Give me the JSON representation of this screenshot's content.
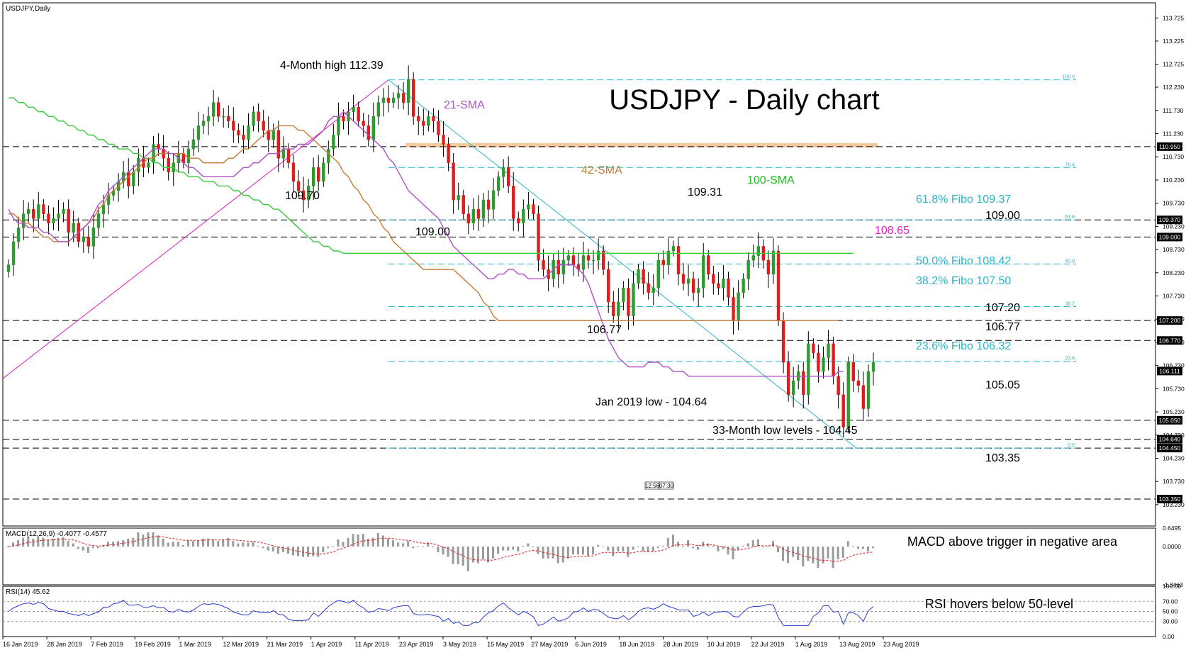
{
  "header": {
    "symbol_label": "USDJPY,Daily"
  },
  "title": "USDJPY - Daily chart",
  "chart_data": [
    {
      "type": "candlestick",
      "name": "main-price-panel",
      "ylim": [
        102.77,
        114.05
      ],
      "y_ticks": [
        113.725,
        113.225,
        112.725,
        112.23,
        111.73,
        111.23,
        110.73,
        110.23,
        109.73,
        109.23,
        108.73,
        108.23,
        107.73,
        107.23,
        106.73,
        106.23,
        105.73,
        105.23,
        104.73,
        104.23,
        103.73,
        103.23,
        102.73
      ],
      "price_badges": [
        {
          "value": "110.950",
          "dark": true
        },
        {
          "value": "109.370",
          "dark": true
        },
        {
          "value": "109.000",
          "dark": true
        },
        {
          "value": "107.200",
          "dark": true
        },
        {
          "value": "106.770",
          "dark": true
        },
        {
          "value": "106.111",
          "dark": true
        },
        {
          "value": "105.050",
          "dark": true
        },
        {
          "value": "104.640",
          "dark": true
        },
        {
          "value": "104.450",
          "dark": true
        },
        {
          "value": "103.350",
          "dark": true
        }
      ],
      "x_labels": [
        "16 Jan 2019",
        "28 Jan 2019",
        "7 Feb 2019",
        "19 Feb 2019",
        "1 Mar 2019",
        "12 Mar 2019",
        "21 Mar 2019",
        "1 Apr 2019",
        "11 Apr 2019",
        "23 Apr 2019",
        "3 May 2019",
        "15 May 2019",
        "27 May 2019",
        "6 Jun 2019",
        "18 Jun 2019",
        "28 Jun 2019",
        "10 Jul 2019",
        "22 Jul 2019",
        "1 Aug 2019",
        "13 Aug 2019",
        "23 Aug 2019"
      ],
      "horizontal_levels": [
        110.95,
        109.37,
        109.0,
        107.2,
        106.77,
        105.05,
        104.64,
        104.45,
        103.35
      ],
      "fibo_levels": [
        {
          "pct": "100.0",
          "value": 112.39
        },
        {
          "pct": "76.4",
          "value": 110.5
        },
        {
          "pct": "61.8",
          "value": 109.37
        },
        {
          "pct": "50.0",
          "value": 108.42
        },
        {
          "pct": "38.2",
          "value": 107.5
        },
        {
          "pct": "23.6",
          "value": 106.32
        },
        {
          "pct": "0.0",
          "value": 104.45
        }
      ],
      "annotations": [
        {
          "text": "4-Month high 112.39",
          "color": "#000000"
        },
        {
          "text": "21-SMA",
          "color": "#b04fc8"
        },
        {
          "text": "42-SMA",
          "color": "#c87a32"
        },
        {
          "text": "100-SMA",
          "color": "#22bb22"
        },
        {
          "text": "109.70",
          "color": "#000000"
        },
        {
          "text": "109.00",
          "color": "#000000"
        },
        {
          "text": "109.31",
          "color": "#000000"
        },
        {
          "text": "106.77",
          "color": "#000000"
        },
        {
          "text": "108.65",
          "color": "#e020c0"
        },
        {
          "text": "61.8% Fibo 109.37",
          "color": "#2ab5c9"
        },
        {
          "text": "109.00",
          "color": "#000000"
        },
        {
          "text": "50.0% Fibo 108.42",
          "color": "#2ab5c9"
        },
        {
          "text": "38.2% Fibo 107.50",
          "color": "#2ab5c9"
        },
        {
          "text": "107.20",
          "color": "#000000"
        },
        {
          "text": "106.77",
          "color": "#000000"
        },
        {
          "text": "23.6% Fibo 106.32",
          "color": "#2ab5c9"
        },
        {
          "text": "105.05",
          "color": "#000000"
        },
        {
          "text": "Jan 2019 low - 104.64",
          "color": "#000000"
        },
        {
          "text": "33-Month low levels - 104.45",
          "color": "#000000"
        },
        {
          "text": "103.35",
          "color": "#000000"
        }
      ],
      "time_badges": [
        "12:56",
        "07:30"
      ],
      "closes": [
        108.4,
        108.9,
        109.2,
        109.5,
        109.6,
        109.4,
        109.7,
        109.5,
        109.3,
        109.4,
        109.5,
        109.6,
        109.1,
        109.3,
        108.9,
        109.0,
        108.8,
        109.2,
        109.5,
        109.7,
        109.9,
        110.0,
        110.2,
        110.4,
        110.1,
        110.4,
        110.7,
        110.5,
        110.6,
        111.0,
        110.9,
        110.7,
        110.4,
        110.6,
        110.8,
        110.6,
        110.9,
        111.1,
        111.4,
        111.5,
        111.6,
        111.9,
        111.6,
        111.6,
        111.5,
        111.3,
        111.2,
        111.1,
        111.4,
        111.7,
        111.5,
        111.3,
        111.1,
        111.3,
        110.7,
        110.9,
        110.6,
        110.2,
        110.0,
        109.8,
        110.1,
        110.5,
        110.2,
        110.6,
        110.9,
        111.2,
        111.6,
        111.5,
        111.7,
        111.8,
        111.5,
        111.4,
        111.1,
        111.6,
        111.9,
        112.0,
        111.9,
        112.0,
        112.1,
        111.9,
        112.4,
        111.6,
        111.5,
        111.4,
        111.6,
        111.5,
        111.2,
        111.0,
        110.6,
        109.8,
        109.9,
        109.5,
        109.3,
        109.6,
        109.4,
        109.8,
        109.6,
        110.0,
        110.3,
        110.5,
        110.1,
        109.4,
        109.3,
        109.6,
        109.7,
        109.5,
        108.5,
        108.3,
        108.1,
        108.5,
        108.2,
        108.5,
        108.6,
        108.4,
        108.3,
        108.6,
        108.5,
        108.5,
        108.7,
        108.3,
        107.6,
        107.3,
        107.6,
        107.9,
        107.3,
        108.0,
        108.3,
        108.0,
        107.8,
        107.9,
        108.5,
        108.4,
        108.7,
        108.8,
        108.2,
        108.0,
        108.1,
        107.8,
        107.9,
        108.6,
        108.2,
        108.0,
        107.9,
        108.1,
        107.7,
        107.2,
        107.8,
        108.1,
        108.5,
        108.6,
        108.8,
        108.5,
        108.2,
        108.7,
        107.2,
        106.3,
        105.6,
        105.9,
        106.1,
        105.6,
        106.7,
        106.5,
        106.1,
        106.4,
        106.7,
        106.0,
        105.6,
        104.9,
        106.3,
        105.9,
        105.8,
        105.3,
        106.1,
        106.3
      ],
      "sma21": [
        109.6,
        109.4,
        109.3,
        109.3,
        109.2,
        109.2,
        109.2,
        109.1,
        109.1,
        109.0,
        108.9,
        108.9,
        108.9,
        109.0,
        109.1,
        109.2,
        109.3,
        109.5,
        109.7,
        109.8,
        110.0,
        110.1,
        110.2,
        110.3,
        110.4,
        110.5,
        110.6,
        110.7,
        110.8,
        110.9,
        110.9,
        110.9,
        110.8,
        110.8,
        110.7,
        110.6,
        110.5,
        110.5,
        110.4,
        110.3,
        110.3,
        110.3,
        110.3,
        110.3,
        110.3,
        110.3,
        110.4,
        110.5,
        110.5,
        110.6,
        110.6,
        110.7,
        110.8,
        110.8,
        110.8,
        110.9,
        110.9,
        110.9,
        111.0,
        111.0,
        111.0,
        111.1,
        111.2,
        111.3,
        111.5,
        111.6,
        111.6,
        111.7,
        111.6,
        111.5,
        111.4,
        111.3,
        111.2,
        111.1,
        111.0,
        110.9,
        110.7,
        110.6,
        110.4,
        110.2,
        110.0,
        109.9,
        109.8,
        109.7,
        109.6,
        109.5,
        109.4,
        109.2,
        109.0,
        108.8,
        108.7,
        108.6,
        108.5,
        108.4,
        108.3,
        108.2,
        108.1,
        108.1,
        108.2,
        108.2,
        108.3,
        108.3,
        108.2,
        108.2,
        108.1,
        108.1,
        108.1,
        108.1,
        108.2,
        108.3,
        108.4,
        108.4,
        108.4,
        108.4,
        108.3,
        108.2,
        108.0,
        107.7,
        107.4,
        107.1,
        106.8,
        106.6,
        106.4,
        106.3,
        106.2,
        106.2,
        106.2,
        106.2,
        106.3,
        106.3,
        106.3,
        106.2,
        106.2,
        106.1,
        106.1,
        106.1,
        106.0,
        106.0,
        106.0,
        106.0,
        106.0,
        106.0,
        106.0,
        106.0,
        106.0,
        106.0,
        106.0,
        106.0,
        106.0,
        106.0,
        106.0,
        106.0,
        106.0,
        106.0,
        106.0,
        106.0,
        106.0,
        106.0,
        106.0,
        106.0,
        106.0,
        106.0,
        106.0,
        106.0,
        106.0,
        106.0,
        106.1,
        106.1
      ],
      "sma42": [
        109.5,
        109.5,
        109.4,
        109.3,
        109.3,
        109.2,
        109.1,
        109.0,
        109.0,
        108.9,
        108.9,
        108.9,
        108.9,
        109.0,
        109.1,
        109.2,
        109.3,
        109.4,
        109.6,
        109.7,
        109.9,
        110.0,
        110.1,
        110.2,
        110.3,
        110.4,
        110.5,
        110.6,
        110.7,
        110.7,
        110.8,
        110.8,
        110.8,
        110.8,
        110.8,
        110.8,
        110.7,
        110.7,
        110.7,
        110.6,
        110.6,
        110.6,
        110.6,
        110.6,
        110.7,
        110.7,
        110.8,
        110.9,
        110.9,
        111.0,
        111.1,
        111.2,
        111.3,
        111.3,
        111.4,
        111.4,
        111.4,
        111.4,
        111.3,
        111.3,
        111.2,
        111.1,
        111.0,
        110.9,
        110.8,
        110.7,
        110.6,
        110.4,
        110.3,
        110.1,
        110.0,
        109.8,
        109.7,
        109.5,
        109.4,
        109.2,
        109.1,
        108.9,
        108.8,
        108.7,
        108.6,
        108.5,
        108.4,
        108.3,
        108.3,
        108.3,
        108.3,
        108.3,
        108.3,
        108.3,
        108.2,
        108.1,
        108.0,
        107.9,
        107.8,
        107.6,
        107.5,
        107.3,
        107.2,
        107.2,
        107.2,
        107.2,
        107.2,
        107.2,
        107.2,
        107.2,
        107.2,
        107.2,
        107.2,
        107.2,
        107.2,
        107.2,
        107.2,
        107.2,
        107.2,
        107.2,
        107.2,
        107.2,
        107.2,
        107.2,
        107.2,
        107.2,
        107.2,
        107.2,
        107.2,
        107.2,
        107.2,
        107.2,
        107.2,
        107.2,
        107.2,
        107.2,
        107.2,
        107.2,
        107.2,
        107.2,
        107.2,
        107.2,
        107.2,
        107.2,
        107.2,
        107.2,
        107.2,
        107.2,
        107.2,
        107.2,
        107.2,
        107.2,
        107.2,
        107.2,
        107.2,
        107.2,
        107.2,
        107.2,
        107.2,
        107.2,
        107.2,
        107.2,
        107.2,
        107.2,
        107.2,
        107.2,
        107.2,
        107.2,
        107.2,
        107.2,
        107.2
      ],
      "sma100": [
        112.0,
        112.0,
        111.9,
        111.9,
        111.8,
        111.8,
        111.7,
        111.7,
        111.6,
        111.6,
        111.5,
        111.5,
        111.4,
        111.4,
        111.3,
        111.3,
        111.2,
        111.2,
        111.1,
        111.1,
        111.0,
        111.0,
        110.9,
        110.9,
        110.9,
        110.8,
        110.8,
        110.7,
        110.7,
        110.6,
        110.6,
        110.5,
        110.5,
        110.5,
        110.4,
        110.4,
        110.3,
        110.3,
        110.3,
        110.2,
        110.2,
        110.2,
        110.1,
        110.1,
        110.1,
        110.0,
        110.0,
        109.9,
        109.9,
        109.8,
        109.8,
        109.7,
        109.7,
        109.6,
        109.6,
        109.5,
        109.4,
        109.3,
        109.2,
        109.1,
        109.0,
        108.9,
        108.9,
        108.8,
        108.8,
        108.7,
        108.7,
        108.65,
        108.65,
        108.65,
        108.65,
        108.65,
        108.65,
        108.65,
        108.65,
        108.65,
        108.65,
        108.65,
        108.65,
        108.65,
        108.65,
        108.65,
        108.65,
        108.65,
        108.65,
        108.65,
        108.65,
        108.65,
        108.65,
        108.65,
        108.65,
        108.65,
        108.65,
        108.65,
        108.65,
        108.65,
        108.65,
        108.65,
        108.65,
        108.65,
        108.65,
        108.65,
        108.65,
        108.65,
        108.65,
        108.65,
        108.65,
        108.65,
        108.65,
        108.65,
        108.65,
        108.65,
        108.65,
        108.65,
        108.65,
        108.65,
        108.65,
        108.65,
        108.65,
        108.65,
        108.65,
        108.65,
        108.65,
        108.65,
        108.65,
        108.65,
        108.65,
        108.65,
        108.65,
        108.65,
        108.65,
        108.65,
        108.65,
        108.65,
        108.65,
        108.65,
        108.65,
        108.65,
        108.65,
        108.65,
        108.65,
        108.65,
        108.65,
        108.65,
        108.65,
        108.65,
        108.65,
        108.65,
        108.65,
        108.65,
        108.65,
        108.65,
        108.65,
        108.65,
        108.65,
        108.65,
        108.65,
        108.65,
        108.65,
        108.65,
        108.65,
        108.65,
        108.65,
        108.65,
        108.65,
        108.65,
        108.65,
        108.65,
        108.65,
        108.65
      ]
    },
    {
      "type": "histogram",
      "name": "macd-panel",
      "label": "MACD(12,26,9) -0.4077 -0.4577",
      "annotation": "MACD above trigger in negative area",
      "y_ticks": [
        "0.6495",
        "0.0000",
        "-1.3463"
      ],
      "ylim": [
        -1.3463,
        0.6495
      ]
    },
    {
      "type": "line",
      "name": "rsi-panel",
      "label": "RSI(14) 45.62",
      "annotation": "RSI hovers below 50-level",
      "y_ticks": [
        "100.00",
        "70.00",
        "50.00",
        "30.00",
        "0.00"
      ],
      "ylim": [
        0,
        100
      ]
    }
  ],
  "colors": {
    "bull": "#2e9b2e",
    "bear": "#e01b1b",
    "sma21": "#b04fc8",
    "sma42": "#c87a32",
    "sma100": "#38cc38",
    "fibo": "#2ab5c9",
    "trend_pink": "#e020c0",
    "resistance_band": "#f2c99a",
    "macd_hist": "#9a9a9a",
    "macd_signal": "#e01b1b",
    "rsi_line": "#2a3bd6"
  }
}
